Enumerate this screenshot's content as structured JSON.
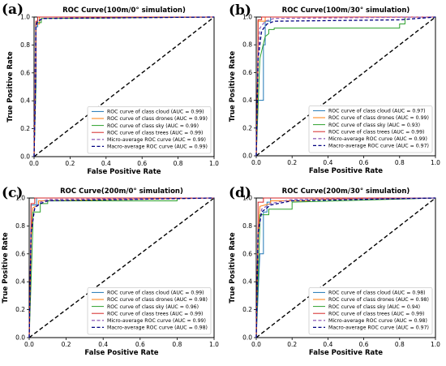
{
  "figure_labels": [
    "(a)",
    "(b)",
    "(c)",
    "(d)"
  ],
  "chart_data": [
    {
      "type": "line",
      "title": "ROC Curve(100m/0° simulation)",
      "xlabel": "False Positive Rate",
      "ylabel": "True Positive Rate",
      "xlim": [
        0,
        1
      ],
      "ylim": [
        0,
        1
      ],
      "ticks": [
        "0.0",
        "0.2",
        "0.4",
        "0.6",
        "0.8",
        "1.0"
      ],
      "legend_position": "lower-right",
      "series": [
        {
          "name": "ROC curve of class cloud (AUC = 0.99)",
          "color": "#1f77b4",
          "dash": "solid",
          "x": [
            0,
            0.01,
            0.01,
            0.02,
            0.02,
            1.0
          ],
          "y": [
            0,
            0.5,
            0.93,
            0.93,
            1.0,
            1.0
          ]
        },
        {
          "name": "ROC curve of class drones (AUC = 0.99)",
          "color": "#ff7f0e",
          "dash": "solid",
          "x": [
            0,
            0.01,
            0.01,
            0.03,
            0.03,
            1.0
          ],
          "y": [
            0,
            0.6,
            0.95,
            0.95,
            1.0,
            1.0
          ]
        },
        {
          "name": "ROC curve of class sky (AUC = 0.99)",
          "color": "#2ca02c",
          "dash": "solid",
          "x": [
            0,
            0.01,
            0.01,
            0.04,
            0.04,
            1.0
          ],
          "y": [
            0,
            0.5,
            0.96,
            0.96,
            0.99,
            1.0
          ]
        },
        {
          "name": "ROC curve of class trees (AUC = 0.99)",
          "color": "#d62728",
          "dash": "solid",
          "x": [
            0,
            0.01,
            0.01,
            0.02,
            0.02,
            1.0
          ],
          "y": [
            0,
            0.7,
            0.97,
            0.97,
            1.0,
            1.0
          ]
        },
        {
          "name": "Micro-average ROC curve (AUC = 0.99)",
          "color": "#9467bd",
          "dash": "dashed",
          "x": [
            0,
            0.005,
            0.01,
            0.02,
            0.05,
            1.0
          ],
          "y": [
            0,
            0.6,
            0.92,
            0.97,
            0.99,
            1.0
          ]
        },
        {
          "name": "Macro-average ROC curve (AUC = 0.99)",
          "color": "#000080",
          "dash": "dashed",
          "x": [
            0,
            0.01,
            0.01,
            0.02,
            0.05,
            1.0
          ],
          "y": [
            0,
            0.6,
            0.94,
            0.97,
            0.99,
            1.0
          ]
        }
      ]
    },
    {
      "type": "line",
      "title": "ROC Curve(100m/30° simulation)",
      "xlabel": "False Positive Rate",
      "ylabel": "True Positive Rate",
      "xlim": [
        0,
        1
      ],
      "ylim": [
        0,
        1
      ],
      "ticks": [
        "0.0",
        "0.2",
        "0.4",
        "0.6",
        "0.8",
        "1.0"
      ],
      "legend_position": "lower-right",
      "series": [
        {
          "name": "ROC curve of class cloud (AUC = 0.97)",
          "color": "#1f77b4",
          "dash": "solid",
          "x": [
            0,
            0.01,
            0.04,
            0.04,
            0.05,
            0.05,
            0.08,
            0.08,
            1.0
          ],
          "y": [
            0,
            0.4,
            0.4,
            0.8,
            0.8,
            0.97,
            0.97,
            1.0,
            1.0
          ]
        },
        {
          "name": "ROC curve of class drones (AUC = 0.99)",
          "color": "#ff7f0e",
          "dash": "solid",
          "x": [
            0,
            0.01,
            0.01,
            0.05,
            0.05,
            1.0
          ],
          "y": [
            0,
            0.7,
            0.97,
            0.97,
            1.0,
            1.0
          ]
        },
        {
          "name": "ROC curve of class sky (AUC = 0.93)",
          "color": "#2ca02c",
          "dash": "solid",
          "x": [
            0,
            0.02,
            0.05,
            0.07,
            0.07,
            0.1,
            0.1,
            0.8,
            0.8,
            0.83,
            0.83,
            1.0
          ],
          "y": [
            0,
            0.7,
            0.86,
            0.88,
            0.91,
            0.91,
            0.92,
            0.92,
            0.95,
            0.95,
            1.0,
            1.0
          ]
        },
        {
          "name": "ROC curve of class trees (AUC = 0.99)",
          "color": "#d62728",
          "dash": "solid",
          "x": [
            0,
            0.01,
            0.01,
            0.03,
            0.03,
            1.0
          ],
          "y": [
            0,
            0.8,
            0.98,
            0.98,
            1.0,
            1.0
          ]
        },
        {
          "name": "Micro-average ROC curve (AUC = 0.99)",
          "color": "#9467bd",
          "dash": "dashed",
          "x": [
            0,
            0.01,
            0.02,
            0.05,
            0.1,
            1.0
          ],
          "y": [
            0,
            0.7,
            0.92,
            0.97,
            0.99,
            1.0
          ]
        },
        {
          "name": "Macro-average ROC curve (AUC = 0.97)",
          "color": "#000080",
          "dash": "dashed",
          "x": [
            0,
            0.01,
            0.03,
            0.06,
            0.1,
            0.8,
            1.0
          ],
          "y": [
            0,
            0.7,
            0.9,
            0.95,
            0.97,
            0.98,
            1.0
          ]
        }
      ]
    },
    {
      "type": "line",
      "title": "ROC Curve(200m/0° simulation)",
      "xlabel": "False Positive Rate",
      "ylabel": "True Positive Rate",
      "xlim": [
        0,
        1
      ],
      "ylim": [
        0,
        1
      ],
      "ticks": [
        "0.0",
        "0.2",
        "0.4",
        "0.6",
        "0.8",
        "1.0"
      ],
      "legend_position": "lower-right",
      "series": [
        {
          "name": "ROC curve of class cloud (AUC = 0.99)",
          "color": "#1f77b4",
          "dash": "solid",
          "x": [
            0,
            0.01,
            0.01,
            0.04,
            0.04,
            1.0
          ],
          "y": [
            0,
            0.8,
            0.95,
            0.95,
            1.0,
            1.0
          ]
        },
        {
          "name": "ROC curve of class drones (AUC = 0.98)",
          "color": "#ff7f0e",
          "dash": "solid",
          "x": [
            0,
            0.01,
            0.02,
            0.05,
            0.05,
            1.0
          ],
          "y": [
            0,
            0.7,
            0.93,
            0.95,
            0.98,
            1.0
          ]
        },
        {
          "name": "ROC curve of class sky (AUC = 0.96)",
          "color": "#2ca02c",
          "dash": "solid",
          "x": [
            0,
            0.02,
            0.02,
            0.06,
            0.06,
            0.1,
            0.1,
            0.8,
            0.8,
            1.0
          ],
          "y": [
            0,
            0.8,
            0.9,
            0.9,
            0.96,
            0.96,
            0.98,
            0.98,
            1.0,
            1.0
          ]
        },
        {
          "name": "ROC curve of class trees (AUC = 0.99)",
          "color": "#d62728",
          "dash": "solid",
          "x": [
            0,
            0.01,
            0.01,
            0.03,
            0.03,
            1.0
          ],
          "y": [
            0,
            0.8,
            0.96,
            0.96,
            1.0,
            1.0
          ]
        },
        {
          "name": "Micro-average ROC curve (AUC = 0.99)",
          "color": "#9467bd",
          "dash": "dashed",
          "x": [
            0,
            0.01,
            0.03,
            0.06,
            0.1,
            1.0
          ],
          "y": [
            0,
            0.75,
            0.93,
            0.97,
            0.99,
            1.0
          ]
        },
        {
          "name": "Macro-average ROC curve (AUC = 0.98)",
          "color": "#000080",
          "dash": "dashed",
          "x": [
            0,
            0.01,
            0.03,
            0.06,
            0.1,
            1.0
          ],
          "y": [
            0,
            0.75,
            0.93,
            0.96,
            0.98,
            1.0
          ]
        }
      ]
    },
    {
      "type": "line",
      "title": "ROC Curve(200m/30° simulation)",
      "xlabel": "False Positive Rate",
      "ylabel": "True Positive Rate",
      "xlim": [
        0,
        1
      ],
      "ylim": [
        0,
        1
      ],
      "ticks": [
        "0.0",
        "0.2",
        "0.4",
        "0.6",
        "0.8",
        "1.0"
      ],
      "legend_position": "lower-right",
      "series": [
        {
          "name": "ROC curve of class cloud (AUC = 0.98)",
          "color": "#1f77b4",
          "dash": "solid",
          "x": [
            0,
            0.02,
            0.04,
            0.04,
            0.06,
            0.06,
            0.08,
            0.08,
            1.0
          ],
          "y": [
            0,
            0.6,
            0.6,
            0.9,
            0.9,
            0.97,
            0.97,
            1.0,
            1.0
          ]
        },
        {
          "name": "ROC curve of class drones (AUC = 0.98)",
          "color": "#ff7f0e",
          "dash": "solid",
          "x": [
            0,
            0.01,
            0.02,
            0.08,
            0.08,
            0.3,
            0.3,
            1.0
          ],
          "y": [
            0,
            0.7,
            0.94,
            0.96,
            0.98,
            0.98,
            0.99,
            1.0
          ]
        },
        {
          "name": "ROC curve of class sky (AUC = 0.94)",
          "color": "#2ca02c",
          "dash": "solid",
          "x": [
            0,
            0.02,
            0.02,
            0.07,
            0.07,
            0.2,
            0.2,
            1.0
          ],
          "y": [
            0,
            0.8,
            0.88,
            0.88,
            0.92,
            0.92,
            0.97,
            1.0
          ]
        },
        {
          "name": "ROC curve of class trees (AUC = 0.99)",
          "color": "#d62728",
          "dash": "solid",
          "x": [
            0,
            0.01,
            0.01,
            0.04,
            0.04,
            1.0
          ],
          "y": [
            0,
            0.8,
            0.97,
            0.97,
            1.0,
            1.0
          ]
        },
        {
          "name": "Micro-average ROC curve (AUC = 0.98)",
          "color": "#9467bd",
          "dash": "dashed",
          "x": [
            0,
            0.01,
            0.03,
            0.08,
            0.2,
            1.0
          ],
          "y": [
            0,
            0.75,
            0.92,
            0.96,
            0.99,
            1.0
          ]
        },
        {
          "name": "Macro-average ROC curve (AUC = 0.97)",
          "color": "#000080",
          "dash": "dashed",
          "x": [
            0,
            0.01,
            0.03,
            0.08,
            0.2,
            1.0
          ],
          "y": [
            0,
            0.75,
            0.9,
            0.95,
            0.98,
            1.0
          ]
        }
      ]
    }
  ]
}
